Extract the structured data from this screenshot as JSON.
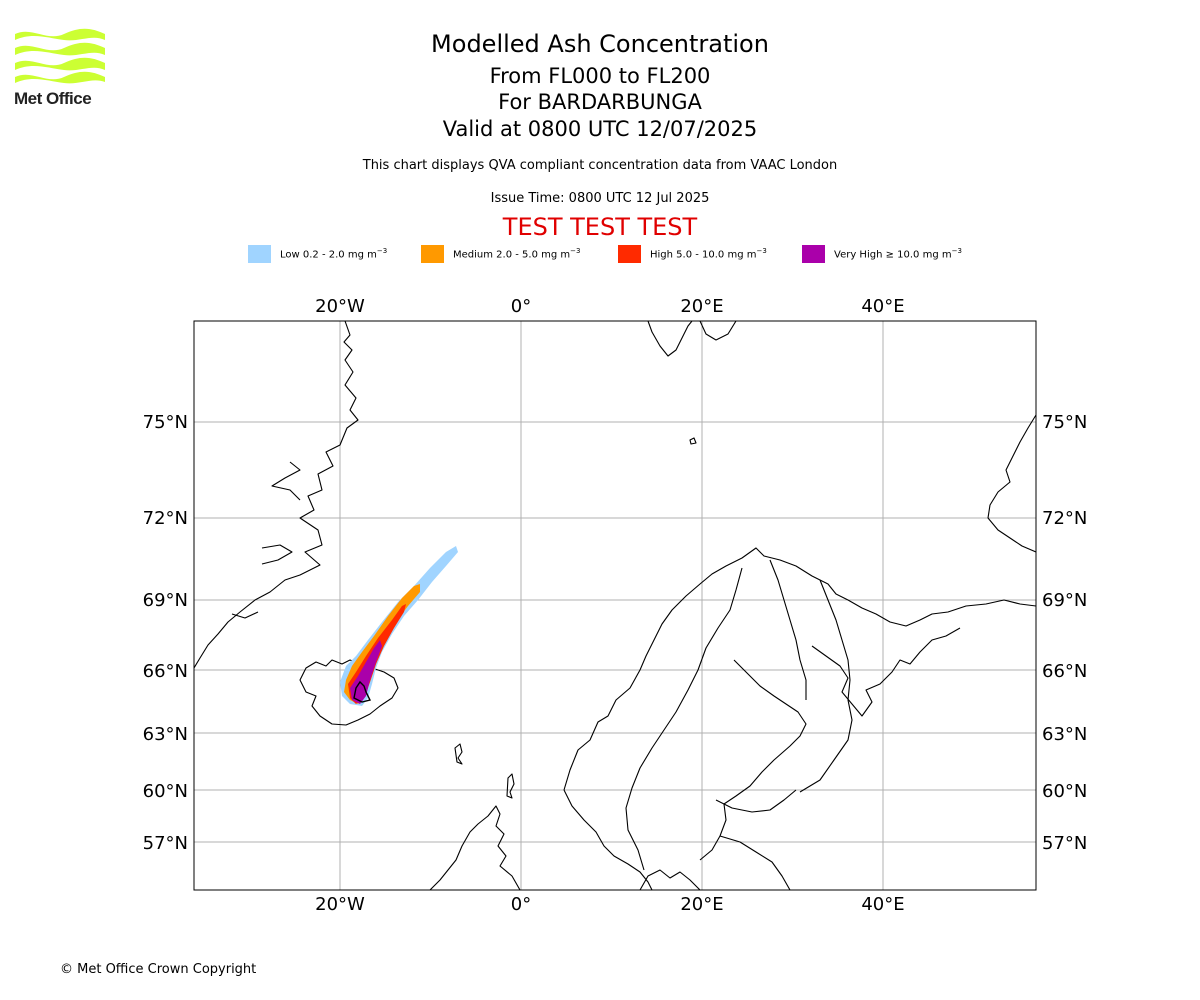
{
  "header": {
    "title": "Modelled Ash Concentration",
    "level_range": "From FL000 to FL200",
    "volcano": "For BARDARBUNGA",
    "valid_time": "Valid at 0800 UTC 12/07/2025",
    "description": "This chart displays QVA compliant concentration data from VAAC London",
    "issue_time": "Issue Time: 0800 UTC 12 Jul 2025",
    "banner": "TEST TEST TEST"
  },
  "logo": {
    "text": "Met Office",
    "color": "#ccff33"
  },
  "legend": [
    {
      "label": "Low 0.2 - 2.0 mg m",
      "unit_exp": "−3",
      "color": "#a0d4ff"
    },
    {
      "label": "Medium 2.0 - 5.0 mg m",
      "unit_exp": "−3",
      "color": "#ff9900"
    },
    {
      "label": "High 5.0 - 10.0 mg m",
      "unit_exp": "−3",
      "color": "#ff2a00"
    },
    {
      "label": "Very High ≥ 10.0 mg m",
      "unit_exp": "−3",
      "color": "#aa00aa"
    }
  ],
  "map": {
    "projection": "polar-stereographic",
    "lon_ticks": [
      "20°W",
      "0°",
      "20°E",
      "40°E"
    ],
    "lat_ticks": [
      "75°N",
      "72°N",
      "69°N",
      "66°N",
      "63°N",
      "60°N",
      "57°N"
    ],
    "grid": true
  },
  "footer": {
    "copyright": "© Met Office Crown Copyright"
  }
}
